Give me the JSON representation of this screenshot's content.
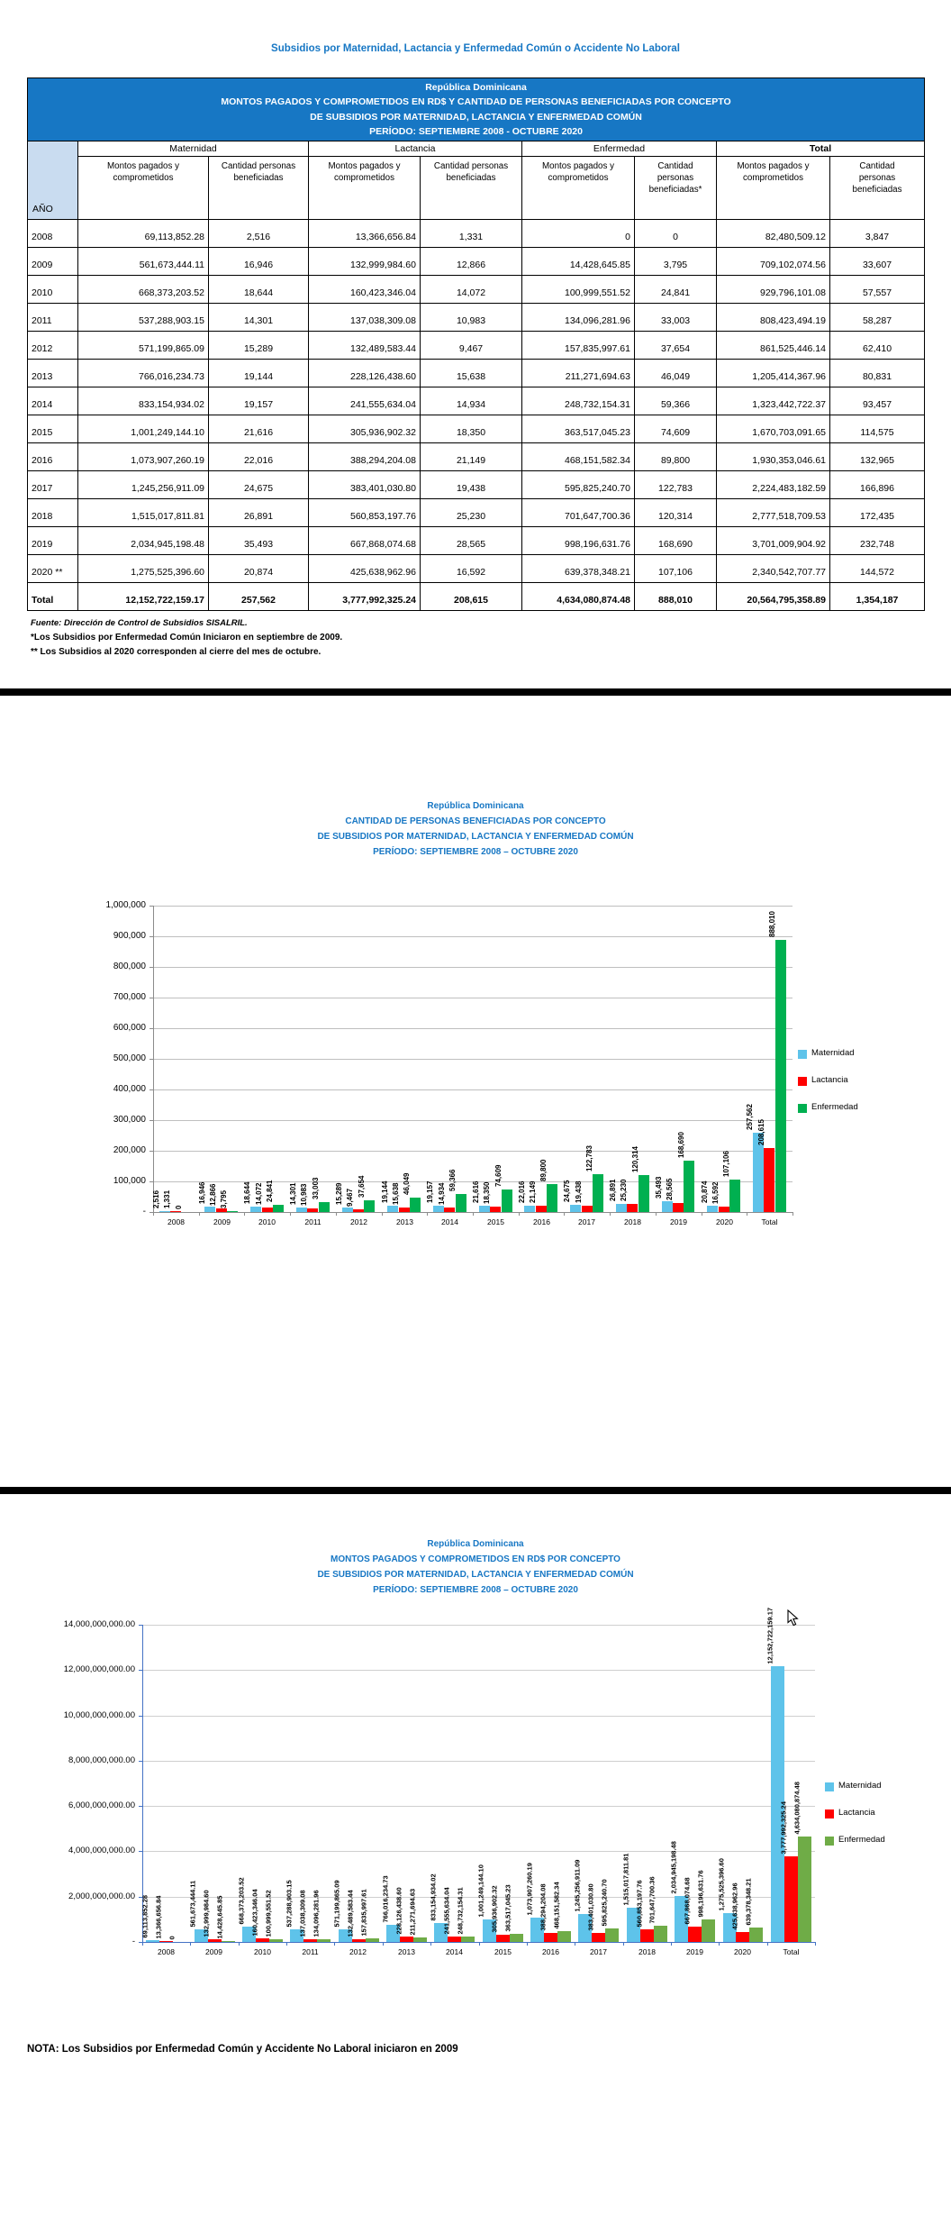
{
  "page_title": "Subsidios por Maternidad, Lactancia y Enfermedad Común o Accidente No Laboral",
  "colors": {
    "title_blue": "#1777C4",
    "table_header_bg": "#1777C4",
    "year_col_bg": "#C9DCF0",
    "maternidad": "#5EC3EA",
    "lactancia": "#FF0000",
    "enfermedad_chart1": "#00B050",
    "enfermedad_chart2": "#6FAC47",
    "gridline": "#BFBFBF",
    "axis_chart1": "#8C8C8C",
    "axis_chart2": "#4472C4"
  },
  "table": {
    "header_lines": [
      "República Dominicana",
      "MONTOS PAGADOS Y COMPROMETIDOS EN RD$ Y  CANTIDAD DE PERSONAS BENEFICIADAS POR CONCEPTO",
      "DE SUBSIDIOS POR MATERNIDAD, LACTANCIA Y ENFERMEDAD COMÚN",
      "PERÍODO: SEPTIEMBRE 2008  - OCTUBRE 2020"
    ],
    "year_col_label": "AÑO",
    "groups": [
      {
        "label": "Maternidad",
        "cols": [
          "Montos pagados y comprometidos",
          "Cantidad personas beneficiadas"
        ]
      },
      {
        "label": "Lactancia",
        "cols": [
          "Montos pagados y comprometidos",
          "Cantidad personas beneficiadas"
        ]
      },
      {
        "label": "Enfermedad",
        "cols": [
          "Montos pagados y comprometidos",
          "Cantidad personas beneficiadas*"
        ]
      },
      {
        "label": "Total",
        "cols": [
          "Montos pagados y comprometidos",
          "Cantidad personas beneficiadas"
        ]
      }
    ],
    "rows": [
      {
        "year": "2008",
        "cells": [
          "69,113,852.28",
          "2,516",
          "13,366,656.84",
          "1,331",
          "0",
          "0",
          "82,480,509.12",
          "3,847"
        ]
      },
      {
        "year": "2009",
        "cells": [
          "561,673,444.11",
          "16,946",
          "132,999,984.60",
          "12,866",
          "14,428,645.85",
          "3,795",
          "709,102,074.56",
          "33,607"
        ]
      },
      {
        "year": "2010",
        "cells": [
          "668,373,203.52",
          "18,644",
          "160,423,346.04",
          "14,072",
          "100,999,551.52",
          "24,841",
          "929,796,101.08",
          "57,557"
        ]
      },
      {
        "year": "2011",
        "cells": [
          "537,288,903.15",
          "14,301",
          "137,038,309.08",
          "10,983",
          "134,096,281.96",
          "33,003",
          "808,423,494.19",
          "58,287"
        ]
      },
      {
        "year": "2012",
        "cells": [
          "571,199,865.09",
          "15,289",
          "132,489,583.44",
          "9,467",
          "157,835,997.61",
          "37,654",
          "861,525,446.14",
          "62,410"
        ]
      },
      {
        "year": "2013",
        "cells": [
          "766,016,234.73",
          "19,144",
          "228,126,438.60",
          "15,638",
          "211,271,694.63",
          "46,049",
          "1,205,414,367.96",
          "80,831"
        ]
      },
      {
        "year": "2014",
        "cells": [
          "833,154,934.02",
          "19,157",
          "241,555,634.04",
          "14,934",
          "248,732,154.31",
          "59,366",
          "1,323,442,722.37",
          "93,457"
        ]
      },
      {
        "year": "2015",
        "cells": [
          "1,001,249,144.10",
          "21,616",
          "305,936,902.32",
          "18,350",
          "363,517,045.23",
          "74,609",
          "1,670,703,091.65",
          "114,575"
        ]
      },
      {
        "year": "2016",
        "cells": [
          "1,073,907,260.19",
          "22,016",
          "388,294,204.08",
          "21,149",
          "468,151,582.34",
          "89,800",
          "1,930,353,046.61",
          "132,965"
        ]
      },
      {
        "year": "2017",
        "cells": [
          "1,245,256,911.09",
          "24,675",
          "383,401,030.80",
          "19,438",
          "595,825,240.70",
          "122,783",
          "2,224,483,182.59",
          "166,896"
        ]
      },
      {
        "year": "2018",
        "cells": [
          "1,515,017,811.81",
          "26,891",
          "560,853,197.76",
          "25,230",
          "701,647,700.36",
          "120,314",
          "2,777,518,709.53",
          "172,435"
        ]
      },
      {
        "year": "2019",
        "cells": [
          "2,034,945,198.48",
          "35,493",
          "667,868,074.68",
          "28,565",
          "998,196,631.76",
          "168,690",
          "3,701,009,904.92",
          "232,748"
        ]
      },
      {
        "year": "2020 **",
        "cells": [
          "1,275,525,396.60",
          "20,874",
          "425,638,962.96",
          "16,592",
          "639,378,348.21",
          "107,106",
          "2,340,542,707.77",
          "144,572"
        ]
      },
      {
        "year": "Total",
        "bold": true,
        "cells": [
          "12,152,722,159.17",
          "257,562",
          "3,777,992,325.24",
          "208,615",
          "4,634,080,874.48",
          "888,010",
          "20,564,795,358.89",
          "1,354,187"
        ]
      }
    ],
    "footnotes": [
      "Fuente: Dirección de Control de Subsidios SISALRIL.",
      "*Los Subsidios por Enfermedad Común Iniciaron en septiembre de 2009.",
      "** Los Subsidios al 2020 corresponden al cierre del mes de octubre."
    ]
  },
  "chart_data": [
    {
      "type": "bar",
      "title_lines": [
        "República Dominicana",
        "CANTIDAD DE PERSONAS BENEFICIADAS POR CONCEPTO",
        "DE SUBSIDIOS POR MATERNIDAD, LACTANCIA Y ENFERMEDAD COMÚN",
        "PERÍODO: SEPTIEMBRE 2008 – OCTUBRE 2020"
      ],
      "categories": [
        "2008",
        "2009",
        "2010",
        "2011",
        "2012",
        "2013",
        "2014",
        "2015",
        "2016",
        "2017",
        "2018",
        "2019",
        "2020",
        "Total"
      ],
      "series": [
        {
          "name": "Maternidad",
          "color": "#5EC3EA",
          "values": [
            2516,
            16946,
            18644,
            14301,
            15289,
            19144,
            19157,
            21616,
            22016,
            24675,
            26891,
            35493,
            20874,
            257562
          ]
        },
        {
          "name": "Lactancia",
          "color": "#FF0000",
          "values": [
            1331,
            12866,
            14072,
            10983,
            9467,
            15638,
            14934,
            18350,
            21149,
            19438,
            25230,
            28565,
            16592,
            208615
          ]
        },
        {
          "name": "Enfermedad",
          "color": "#00B050",
          "values": [
            0,
            3795,
            24841,
            33003,
            37654,
            46049,
            59366,
            74609,
            89800,
            122783,
            120314,
            168690,
            107106,
            888010
          ]
        }
      ],
      "ylim": [
        0,
        1000000
      ],
      "ytick_step": 100000,
      "ytick_labels": [
        "-",
        "100,000",
        "200,000",
        "300,000",
        "400,000",
        "500,000",
        "600,000",
        "700,000",
        "800,000",
        "900,000",
        "1,000,000"
      ],
      "label_format": "int",
      "grid": true,
      "legend_position": "right",
      "xlabel": "",
      "ylabel": ""
    },
    {
      "type": "bar",
      "title_lines": [
        "República Dominicana",
        "MONTOS PAGADOS Y COMPROMETIDOS EN RD$ POR CONCEPTO",
        "DE SUBSIDIOS POR MATERNIDAD, LACTANCIA Y ENFERMEDAD COMÚN",
        "PERÍODO: SEPTIEMBRE 2008 – OCTUBRE 2020"
      ],
      "categories": [
        "2008",
        "2009",
        "2010",
        "2011",
        "2012",
        "2013",
        "2014",
        "2015",
        "2016",
        "2017",
        "2018",
        "2019",
        "2020",
        "Total"
      ],
      "series": [
        {
          "name": "Maternidad",
          "color": "#5EC3EA",
          "values": [
            69113852.28,
            561673444.11,
            668373203.52,
            537288903.15,
            571199865.09,
            766016234.73,
            833154934.02,
            1001249144.1,
            1073907260.19,
            1245256911.09,
            1515017811.81,
            2034945198.48,
            1275525396.6,
            12152722159.17
          ]
        },
        {
          "name": "Lactancia",
          "color": "#FF0000",
          "values": [
            13366656.84,
            132999984.6,
            160423346.04,
            137038309.08,
            132489583.44,
            228126438.6,
            241555634.04,
            305936902.32,
            388294204.08,
            383401030.8,
            560853197.76,
            667868074.68,
            425638962.96,
            3777992325.24
          ]
        },
        {
          "name": "Enfermedad",
          "color": "#6FAC47",
          "values": [
            0,
            14428645.85,
            100999551.52,
            134096281.96,
            157835997.61,
            211271694.63,
            248732154.31,
            363517045.23,
            468151582.34,
            595825240.7,
            701647700.36,
            998196631.76,
            639378348.21,
            4634080874.48
          ]
        }
      ],
      "ylim": [
        0,
        14000000000
      ],
      "ytick_step": 2000000000,
      "ytick_labels": [
        "-",
        "2,000,000,000.00",
        "4,000,000,000.00",
        "6,000,000,000.00",
        "8,000,000,000.00",
        "10,000,000,000.00",
        "12,000,000,000.00",
        "14,000,000,000.00"
      ],
      "label_format": "money",
      "grid": true,
      "legend_position": "right",
      "xlabel": "",
      "ylabel": ""
    }
  ],
  "nota": "NOTA: Los Subsidios por Enfermedad Común y Accidente No Laboral iniciaron en 2009"
}
